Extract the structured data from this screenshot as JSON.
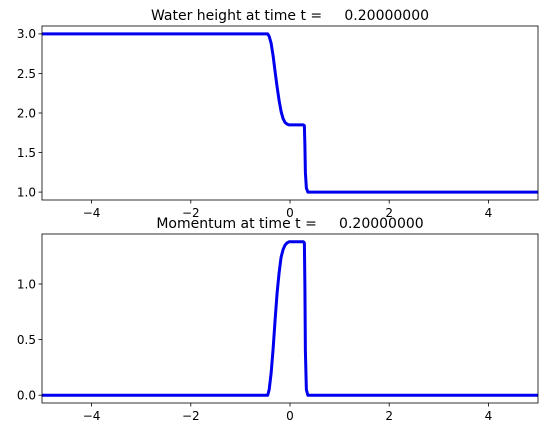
{
  "chart_data": [
    {
      "type": "line",
      "title": "Water height at time t =     0.20000000",
      "xlabel": "",
      "ylabel": "",
      "xlim": [
        -5,
        5
      ],
      "ylim": [
        0.9,
        3.1
      ],
      "xticks": [
        -4,
        -2,
        0,
        2,
        4
      ],
      "xtick_labels": [
        "−4",
        "−2",
        "0",
        "2",
        "4"
      ],
      "yticks": [
        1.0,
        1.5,
        2.0,
        2.5,
        3.0
      ],
      "ytick_labels": [
        "1.0",
        "1.5",
        "2.0",
        "2.5",
        "3.0"
      ],
      "grid": false,
      "series": [
        {
          "color": "#0000ee",
          "x": [
            -5,
            -0.45,
            -0.42,
            -0.38,
            -0.34,
            -0.3,
            -0.26,
            -0.22,
            -0.18,
            -0.14,
            -0.1,
            -0.06,
            -0.02,
            0.0,
            0.05,
            0.1,
            0.2,
            0.27,
            0.29,
            0.3,
            0.31,
            0.33,
            0.36,
            1.0,
            3.0,
            5.0
          ],
          "y": [
            3.0,
            3.0,
            2.97,
            2.88,
            2.72,
            2.52,
            2.33,
            2.16,
            2.02,
            1.93,
            1.88,
            1.86,
            1.85,
            1.85,
            1.85,
            1.85,
            1.85,
            1.85,
            1.84,
            1.6,
            1.25,
            1.05,
            1.0,
            1.0,
            1.0,
            1.0
          ]
        }
      ]
    },
    {
      "type": "line",
      "title": "Momentum at time t =     0.20000000",
      "xlabel": "",
      "ylabel": "",
      "xlim": [
        -5,
        5
      ],
      "ylim": [
        -0.07,
        1.45
      ],
      "xticks": [
        -4,
        -2,
        0,
        2,
        4
      ],
      "xtick_labels": [
        "−4",
        "−2",
        "0",
        "2",
        "4"
      ],
      "yticks": [
        0.0,
        0.5,
        1.0
      ],
      "ytick_labels": [
        "0.0",
        "0.5",
        "1.0"
      ],
      "grid": false,
      "series": [
        {
          "color": "#0000ee",
          "x": [
            -5,
            -0.45,
            -0.42,
            -0.38,
            -0.34,
            -0.3,
            -0.26,
            -0.22,
            -0.18,
            -0.14,
            -0.1,
            -0.06,
            -0.02,
            0.0,
            0.05,
            0.1,
            0.2,
            0.27,
            0.29,
            0.3,
            0.31,
            0.33,
            0.36,
            1.0,
            3.0,
            5.0
          ],
          "y": [
            0.0,
            0.0,
            0.05,
            0.2,
            0.42,
            0.68,
            0.92,
            1.1,
            1.24,
            1.31,
            1.35,
            1.37,
            1.38,
            1.38,
            1.38,
            1.38,
            1.38,
            1.38,
            1.37,
            1.0,
            0.4,
            0.05,
            0.0,
            0.0,
            0.0,
            0.0
          ]
        }
      ]
    }
  ]
}
